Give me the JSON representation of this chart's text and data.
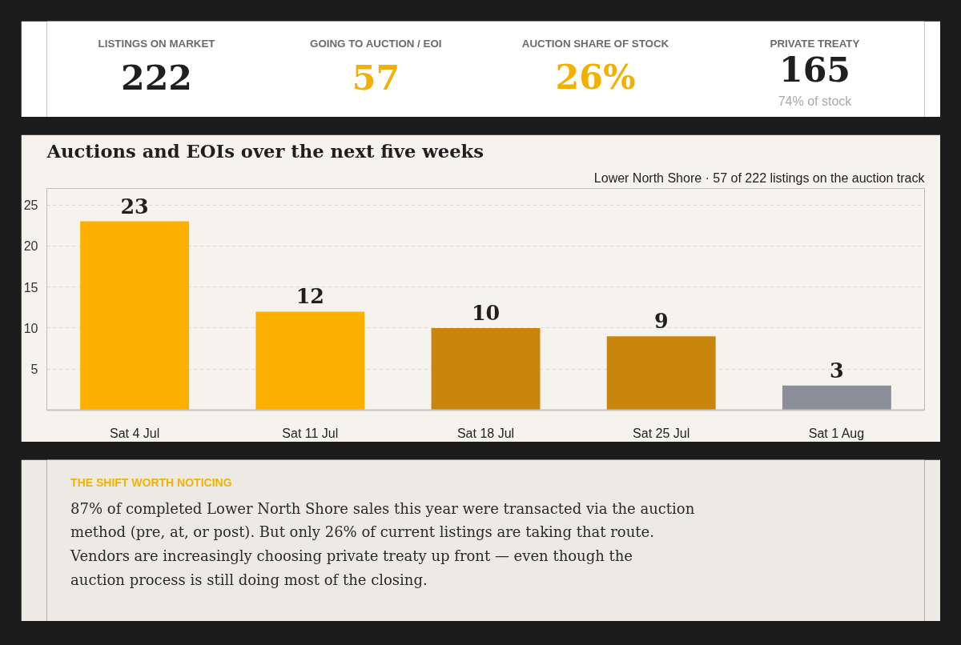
{
  "chart_data": [
    {
      "type": "other",
      "categories": [
        "LISTINGS ON MARKET",
        "GOING TO AUCTION / EOI",
        "AUCTION SHARE OF STOCK",
        "PRIVATE TREATY"
      ],
      "annotations": [
        "222",
        "57",
        "26%",
        "165",
        "74% of stock"
      ]
    },
    {
      "type": "bar",
      "title": "Auctions and EOIs over the next five weeks",
      "subtitle": "Lower North Shore · 57 of 222 listings on the auction track",
      "categories": [
        "Sat 4 Jul",
        "Sat 11 Jul",
        "Sat 18 Jul",
        "Sat 25 Jul",
        "Sat 1 Aug"
      ],
      "values": [
        23,
        12,
        10,
        9,
        3
      ],
      "colors": [
        "#fdb000",
        "#fdb000",
        "#c8860d",
        "#c8860d",
        "#8a8f99"
      ],
      "ylim": [
        0,
        27
      ],
      "yticks": [
        5,
        10,
        15,
        20,
        25
      ],
      "grid": "y",
      "data_labels": true
    },
    {
      "type": "other",
      "title": "THE SHIFT WORTH NOTICING",
      "annotations": [
        "87% of completed Lower North Shore sales this year were transacted via the auction method (pre, at, or post). But only 26% of current listings are taking that route. Vendors are increasingly choosing private treaty up front — even though the auction process is still doing most of the closing."
      ]
    }
  ]
}
